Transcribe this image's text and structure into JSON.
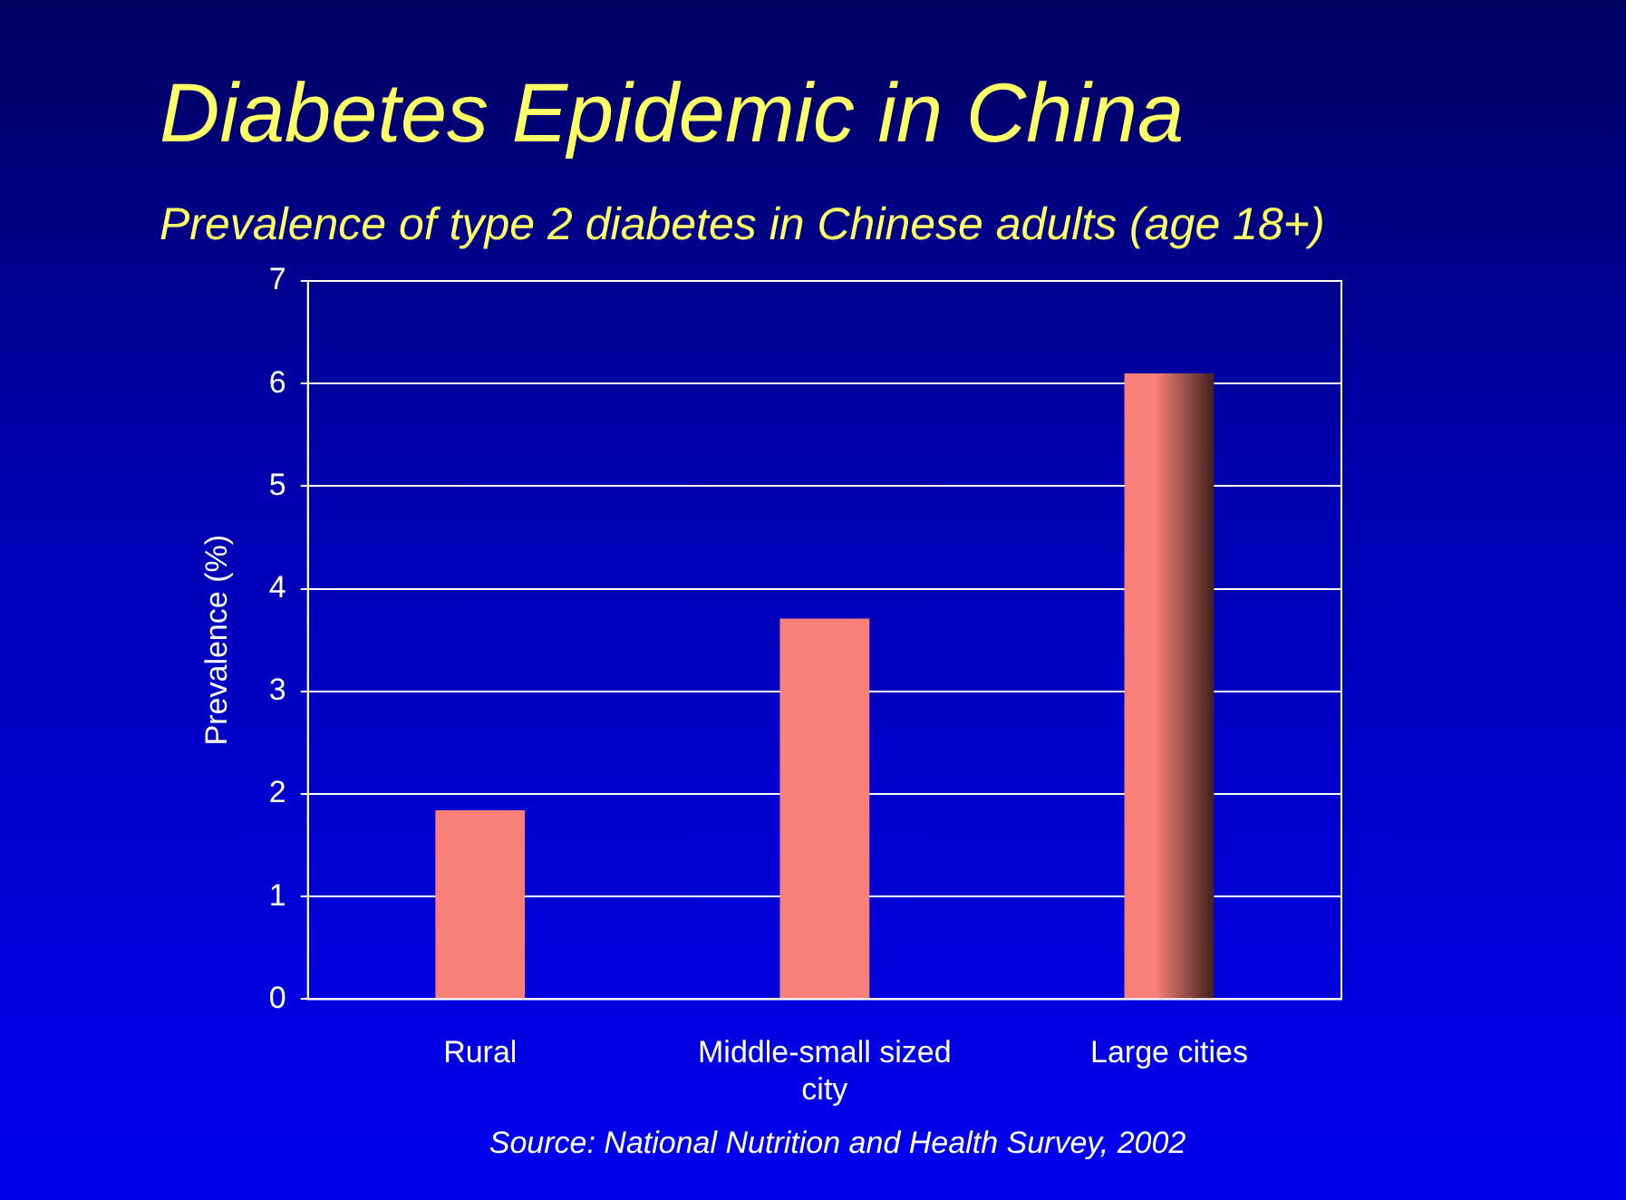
{
  "chart_data": {
    "type": "bar",
    "title": "Diabetes Epidemic in China",
    "subtitle": "Prevalence of type 2 diabetes in Chinese adults (age 18+)",
    "ylabel": "Prevalence (%)",
    "categories": [
      "Rural",
      "Middle-small sized city",
      "Large cities"
    ],
    "values": [
      1.84,
      3.71,
      6.1
    ],
    "color": "#f88078",
    "ylim": [
      0,
      7
    ],
    "yticks": [
      0,
      1,
      2,
      3,
      4,
      5,
      6,
      7
    ],
    "grid": "y",
    "annotations": [
      "Source: National Nutrition and Health Survey, 2002"
    ]
  }
}
